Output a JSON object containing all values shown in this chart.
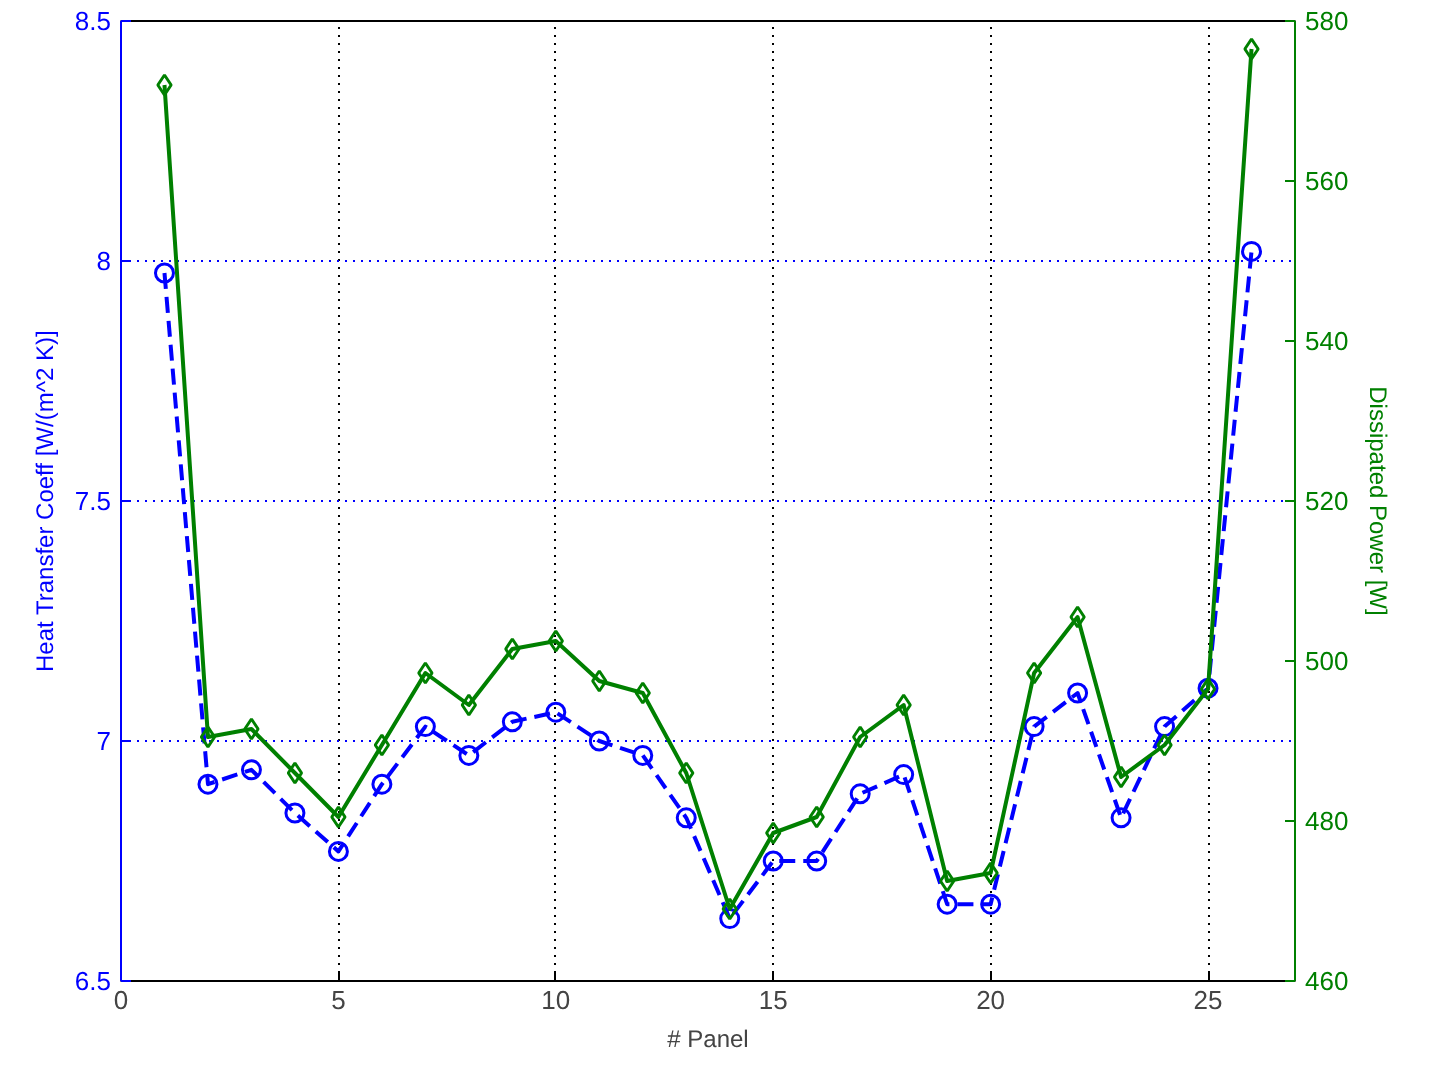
{
  "chart_data": {
    "type": "line",
    "xlabel": "# Panel",
    "ylabel": "Heat Transfer Coeff [W/(m^2 K)]",
    "y2label": "Dissipated Power [W]",
    "x": [
      1,
      2,
      3,
      4,
      5,
      6,
      7,
      8,
      9,
      10,
      11,
      12,
      13,
      14,
      15,
      16,
      17,
      18,
      19,
      20,
      21,
      22,
      23,
      24,
      25,
      26
    ],
    "series": [
      {
        "color": "#0000ff",
        "marker": "circle",
        "line_style": "dashed",
        "values": [
          7.975,
          6.91,
          6.94,
          6.85,
          6.77,
          6.91,
          7.03,
          6.97,
          7.04,
          7.06,
          7.0,
          6.97,
          6.84,
          6.63,
          6.75,
          6.75,
          6.89,
          6.93,
          6.66,
          6.66,
          7.03,
          7.1,
          6.84,
          7.03,
          7.11,
          8.02
        ]
      },
      {
        "color": "#008000",
        "marker": "diamond",
        "line_style": "solid",
        "axis": "y2",
        "values": [
          572,
          490.5,
          491.5,
          486,
          480.5,
          489.5,
          498.5,
          494.5,
          501.5,
          502.5,
          497.5,
          496,
          486,
          469,
          478.5,
          480.5,
          490.5,
          494.5,
          472.5,
          473.5,
          498.5,
          505.5,
          485.5,
          489.5,
          496.5,
          576.5
        ]
      }
    ],
    "xlim": [
      0,
      27
    ],
    "xticks": [
      0,
      5,
      10,
      15,
      20,
      25
    ],
    "ylim": [
      6.5,
      8.5
    ],
    "yticks": [
      6.5,
      7,
      7.5,
      8,
      8.5
    ],
    "y2lim": [
      460,
      580
    ],
    "y2ticks": [
      460,
      480,
      500,
      520,
      540,
      560,
      580
    ],
    "grid": true
  }
}
